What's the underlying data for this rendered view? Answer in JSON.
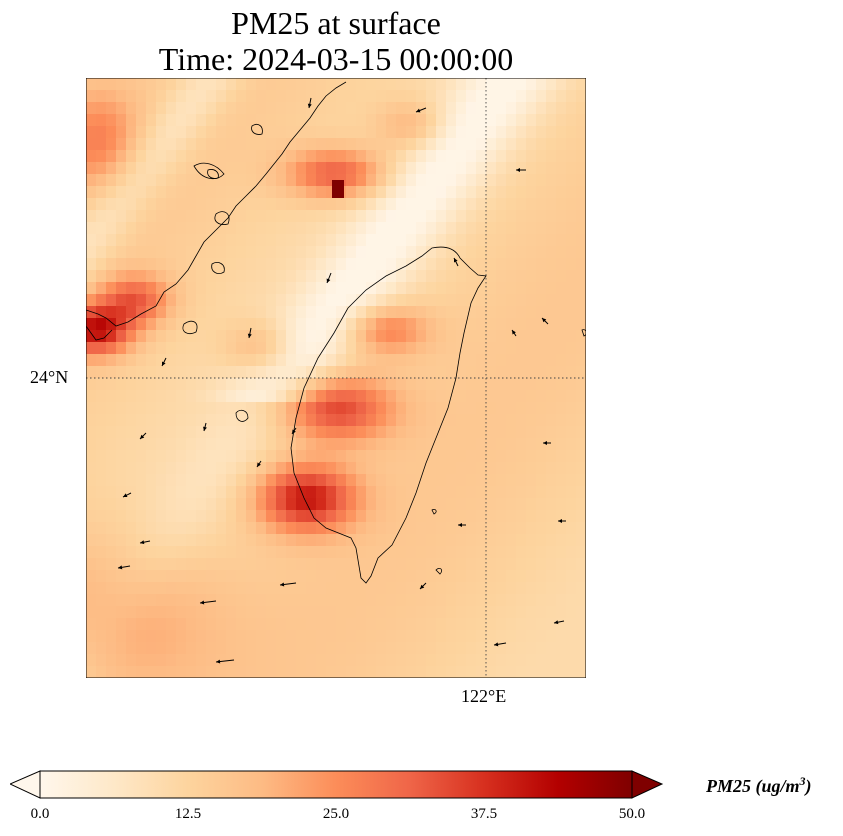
{
  "title_line1": "PM25 at surface",
  "title_line2": "Time: 2024-03-15 00:00:00",
  "map": {
    "lat_label": "24°N",
    "lon_label": "122°E",
    "gridline_style": "dotted",
    "coastline_color": "#000000"
  },
  "colorbar": {
    "colormap": "OrRd",
    "extend": "both",
    "ticks": [
      "0.0",
      "12.5",
      "25.0",
      "37.5",
      "50.0"
    ],
    "vmin": 0.0,
    "vmax": 50.0,
    "label_main": "PM25 (ug/m",
    "label_sup": "3",
    "label_end": ")",
    "colors": [
      "#fff7ec",
      "#fee8c8",
      "#fdd49e",
      "#fdbb84",
      "#fc8d59",
      "#ef6548",
      "#d7301f",
      "#b30000",
      "#7f0000"
    ]
  }
}
